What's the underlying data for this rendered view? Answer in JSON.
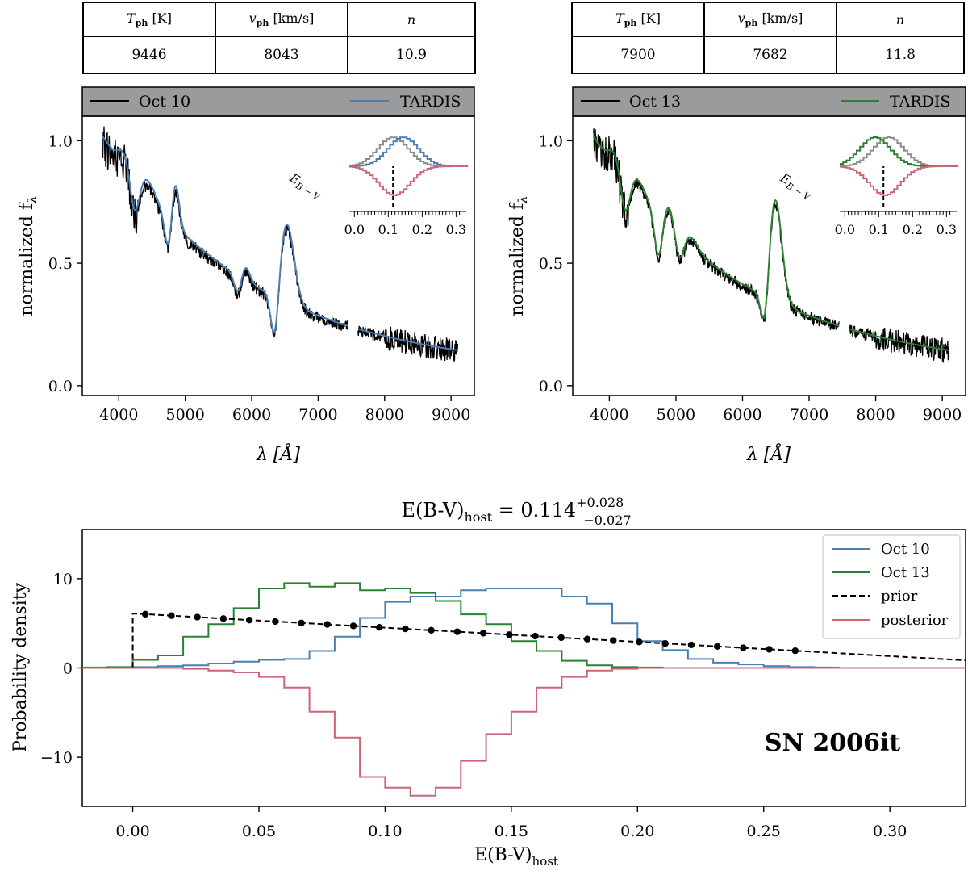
{
  "colors": {
    "oct10": "#4a7fb4",
    "oct13": "#2a8232",
    "prior": "#000000",
    "posterior": "#cc6677",
    "header_bg": "#9b9b9b",
    "observed": "#000000",
    "inset_gray": "#8c8c8c"
  },
  "tables": [
    {
      "headers": {
        "t_sym": "T",
        "t_sub": "ph",
        "t_unit": "[K]",
        "v_sym": "v",
        "v_sub": "ph",
        "v_unit": "[km/s]",
        "n_sym": "n"
      },
      "values": {
        "t": "9446",
        "v": "8043",
        "n": "10.9"
      }
    },
    {
      "headers": {
        "t_sym": "T",
        "t_sub": "ph",
        "t_unit": "[K]",
        "v_sym": "v",
        "v_sub": "ph",
        "v_unit": "[km/s]",
        "n_sym": "n"
      },
      "values": {
        "t": "7900",
        "v": "7682",
        "n": "11.8"
      }
    }
  ],
  "spectra": [
    {
      "legend_obs": "Oct 10",
      "legend_model": "TARDIS",
      "model_color_key": "oct10",
      "ylabel": "normalized f",
      "ylabel_sub": "λ",
      "xlabel": "λ [Å]",
      "yticks": [
        "0.0",
        "0.5",
        "1.0"
      ],
      "xticks": [
        "4000",
        "5000",
        "6000",
        "7000",
        "8000",
        "9000"
      ],
      "xlim": [
        3450,
        9350
      ],
      "ylim": [
        -0.04,
        1.1
      ],
      "inset": {
        "label": "E",
        "label_sub": "B − V",
        "xticks": [
          "0.0",
          "0.1",
          "0.2",
          "0.3"
        ],
        "marker": 0.114,
        "model_center": 0.14,
        "gray_center": 0.11
      }
    },
    {
      "legend_obs": "Oct 13",
      "legend_model": "TARDIS",
      "model_color_key": "oct13",
      "ylabel": "normalized f",
      "ylabel_sub": "λ",
      "xlabel": "λ [Å]",
      "yticks": [
        "0.0",
        "0.5",
        "1.0"
      ],
      "xticks": [
        "4000",
        "5000",
        "6000",
        "7000",
        "8000",
        "9000"
      ],
      "xlim": [
        3450,
        9350
      ],
      "ylim": [
        -0.04,
        1.1
      ],
      "inset": {
        "label": "E",
        "label_sub": "B − V",
        "xticks": [
          "0.0",
          "0.1",
          "0.2",
          "0.3"
        ],
        "marker": 0.114,
        "model_center": 0.085,
        "gray_center": 0.125
      }
    }
  ],
  "chart_data": {
    "type": "histogram",
    "title_lhs": "E(B-V)",
    "title_sub": "host",
    "title_value": " = 0.114",
    "title_err_plus": "+0.028",
    "title_err_minus": "−0.027",
    "xlabel": "E(B-V)",
    "xlabel_sub": "host",
    "ylabel": "Probability density",
    "xlim": [
      -0.02,
      0.33
    ],
    "ylim": [
      -15.5,
      15.5
    ],
    "xticks": [
      "0.00",
      "0.05",
      "0.10",
      "0.15",
      "0.20",
      "0.25",
      "0.30"
    ],
    "yticks": [
      "−10",
      "0",
      "10"
    ],
    "annotation": "SN 2006it",
    "bin_edges": [
      -0.02,
      -0.01,
      0.0,
      0.01,
      0.02,
      0.03,
      0.04,
      0.05,
      0.06,
      0.07,
      0.08,
      0.09,
      0.1,
      0.11,
      0.12,
      0.13,
      0.14,
      0.15,
      0.16,
      0.17,
      0.18,
      0.19,
      0.2,
      0.21,
      0.22,
      0.23,
      0.24,
      0.25,
      0.26,
      0.27,
      0.28
    ],
    "series": [
      {
        "name": "Oct 10",
        "color_key": "oct10",
        "style": "step",
        "values": [
          0.0,
          0.05,
          0.1,
          0.2,
          0.3,
          0.5,
          0.7,
          0.9,
          1.0,
          1.9,
          3.5,
          5.6,
          7.4,
          8.0,
          8.0,
          8.7,
          8.9,
          8.9,
          8.9,
          8.0,
          7.2,
          5.0,
          3.0,
          2.0,
          1.0,
          0.6,
          0.4,
          0.2,
          0.1,
          0.05
        ]
      },
      {
        "name": "Oct 13",
        "color_key": "oct13",
        "style": "step",
        "values": [
          0.05,
          0.1,
          0.9,
          1.4,
          3.5,
          4.9,
          6.7,
          8.9,
          9.5,
          9.1,
          9.5,
          8.7,
          8.9,
          8.4,
          7.5,
          6.0,
          4.9,
          3.0,
          1.9,
          0.8,
          0.3,
          0.1,
          0.05,
          0.0,
          0.0,
          0.0,
          0.0,
          0.0,
          0.0,
          0.0
        ]
      },
      {
        "name": "prior",
        "color_key": "prior",
        "style": "dashed",
        "x": [
          0.0,
          0.33
        ],
        "y": [
          6.1,
          0.85
        ],
        "marker_x": [
          0.005,
          0.0153,
          0.0256,
          0.0359,
          0.0462,
          0.0565,
          0.0668,
          0.0771,
          0.0874,
          0.0977,
          0.108,
          0.1183,
          0.1286,
          0.1389,
          0.1492,
          0.1595,
          0.1698,
          0.1801,
          0.1904,
          0.2007,
          0.211,
          0.2213,
          0.2316,
          0.2419,
          0.2522,
          0.2625
        ]
      },
      {
        "name": "posterior",
        "color_key": "posterior",
        "style": "step",
        "values": [
          0.0,
          0.0,
          0.0,
          0.0,
          -0.1,
          -0.3,
          -0.5,
          -1.0,
          -2.2,
          -4.9,
          -7.8,
          -12.2,
          -13.4,
          -14.3,
          -13.4,
          -10.4,
          -7.4,
          -4.9,
          -2.2,
          -1.0,
          -0.3,
          -0.1,
          0.0,
          0.0,
          0.0,
          0.0,
          0.0,
          0.0,
          0.0,
          0.0
        ]
      }
    ],
    "legend_labels": [
      "Oct 10",
      "Oct 13",
      "prior",
      "posterior"
    ]
  }
}
